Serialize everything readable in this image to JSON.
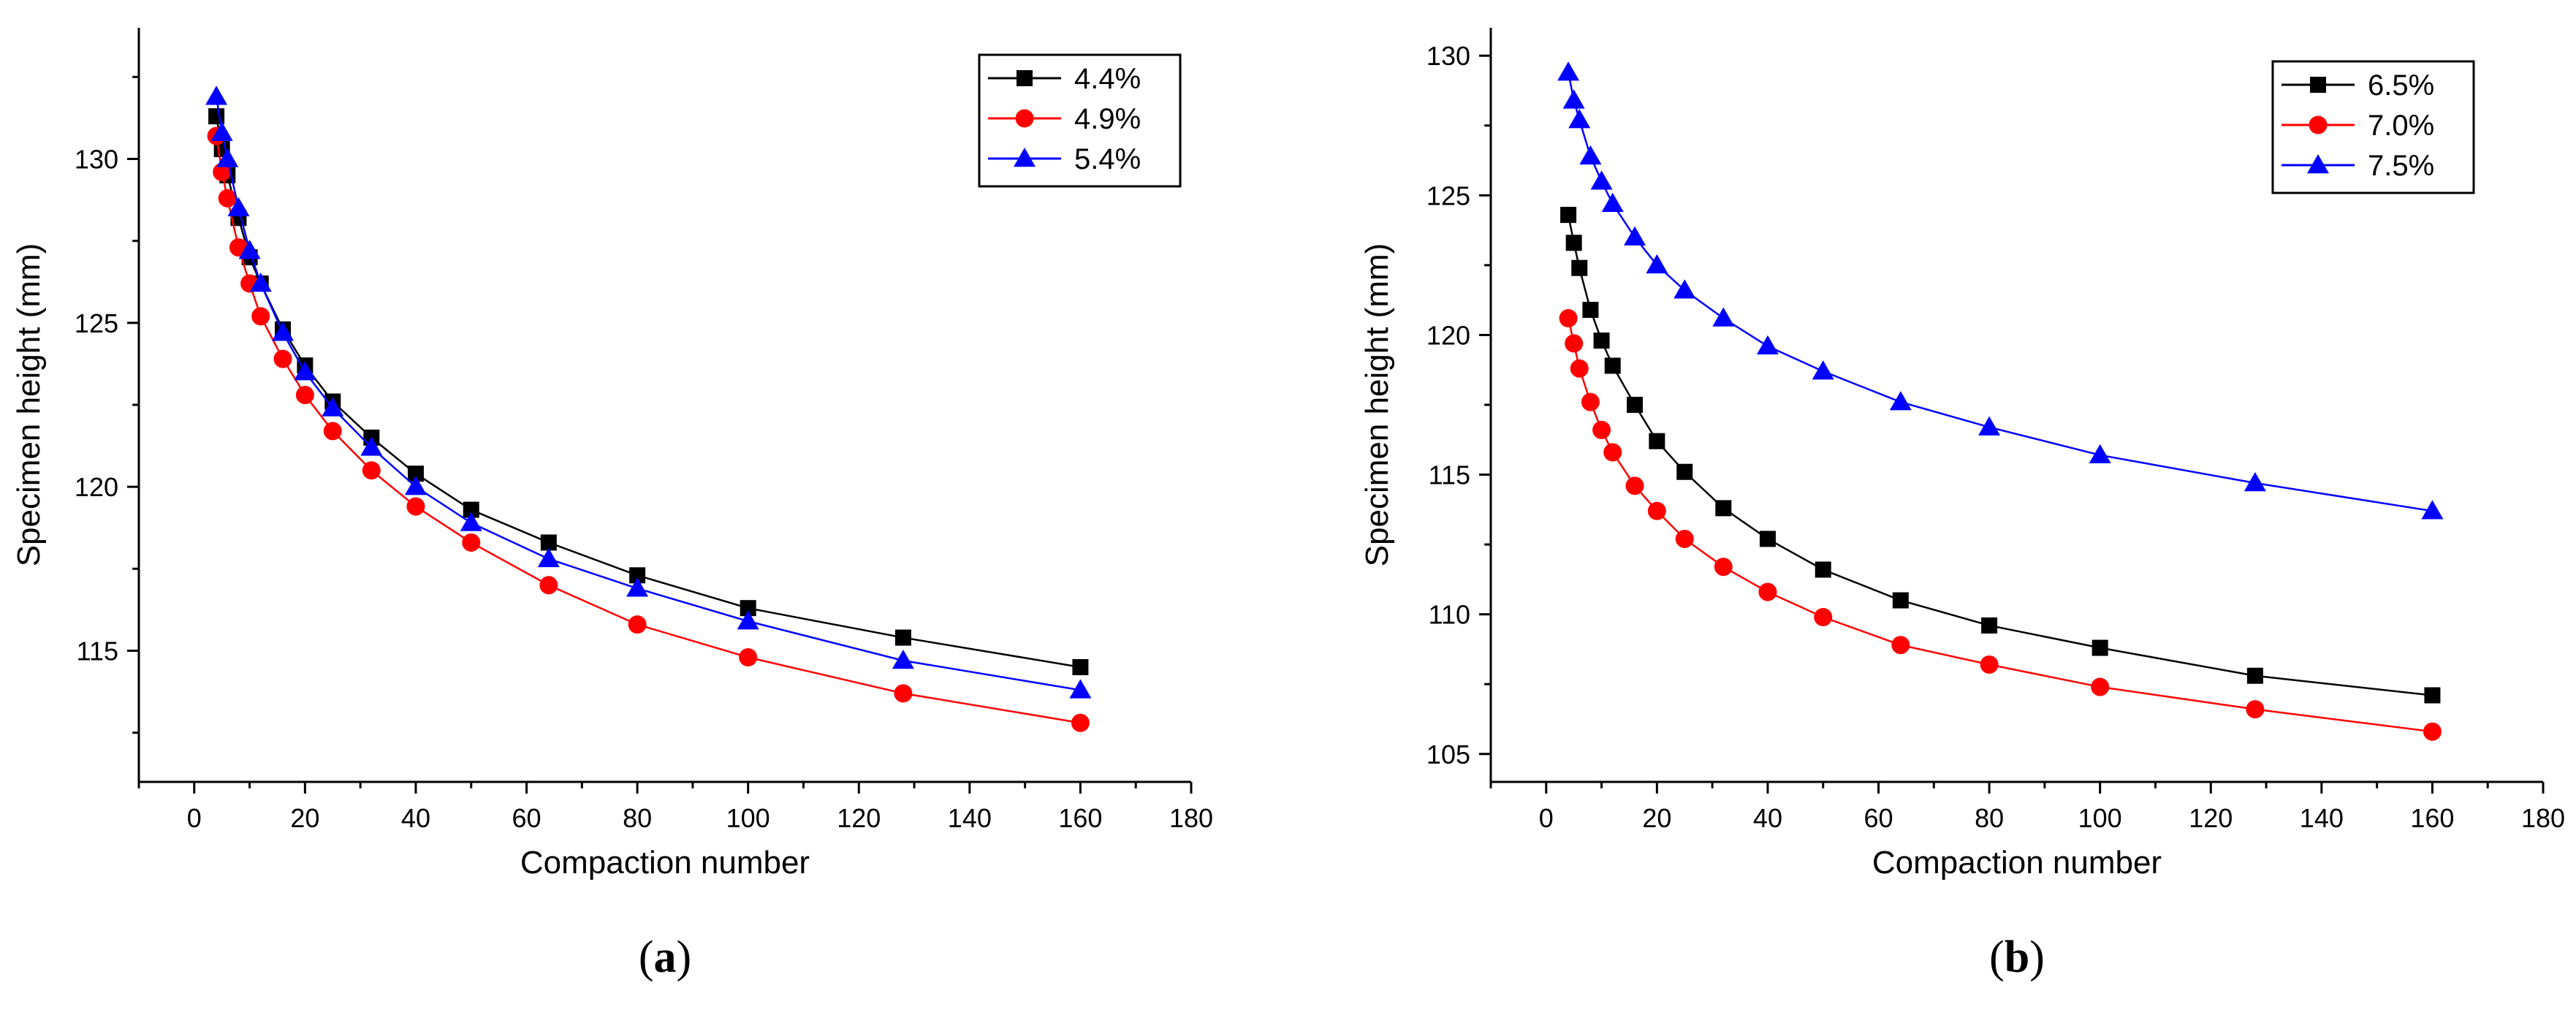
{
  "chart_data": [
    {
      "type": "line",
      "panel": "(a)",
      "panel_letter": "a",
      "xlabel": "Compaction number",
      "ylabel": "Specimen height (mm)",
      "xlim": [
        -10,
        180
      ],
      "ylim": [
        111,
        134
      ],
      "xticks": [
        0,
        20,
        40,
        60,
        80,
        100,
        120,
        140,
        160,
        180
      ],
      "yticks": [
        115,
        120,
        125,
        130
      ],
      "legend_position": "top-right",
      "series": [
        {
          "name": "4.4%",
          "color": "#000000",
          "marker": "square",
          "x": [
            4,
            5,
            6,
            8,
            10,
            12,
            16,
            20,
            25,
            32,
            40,
            50,
            64,
            80,
            100,
            128,
            160
          ],
          "y": [
            131.3,
            130.3,
            129.5,
            128.2,
            127.0,
            126.2,
            124.8,
            123.7,
            122.6,
            121.5,
            120.4,
            119.3,
            118.3,
            117.3,
            116.3,
            115.4,
            114.5
          ]
        },
        {
          "name": "4.9%",
          "color": "#ff0000",
          "marker": "circle",
          "x": [
            4,
            5,
            6,
            8,
            10,
            12,
            16,
            20,
            25,
            32,
            40,
            50,
            64,
            80,
            100,
            128,
            160
          ],
          "y": [
            130.7,
            129.6,
            128.8,
            127.3,
            126.2,
            125.2,
            123.9,
            122.8,
            121.7,
            120.5,
            119.4,
            118.3,
            117.0,
            115.8,
            114.8,
            113.7,
            112.8
          ]
        },
        {
          "name": "5.4%",
          "color": "#0000ff",
          "marker": "triangle",
          "x": [
            4,
            5,
            6,
            8,
            10,
            12,
            16,
            20,
            25,
            32,
            40,
            50,
            64,
            80,
            100,
            128,
            160
          ],
          "y": [
            131.9,
            130.8,
            130.0,
            128.5,
            127.2,
            126.2,
            124.7,
            123.5,
            122.4,
            121.2,
            120.0,
            118.9,
            117.8,
            116.9,
            115.9,
            114.7,
            113.8
          ]
        }
      ]
    },
    {
      "type": "line",
      "panel": "(b)",
      "panel_letter": "b",
      "xlabel": "Compaction number",
      "ylabel": "Specimen height (mm)",
      "xlim": [
        -10,
        180
      ],
      "ylim": [
        104,
        131
      ],
      "xticks": [
        0,
        20,
        40,
        60,
        80,
        100,
        120,
        140,
        160,
        180
      ],
      "yticks": [
        105,
        110,
        115,
        120,
        125,
        130
      ],
      "legend_position": "top-right",
      "series": [
        {
          "name": "6.5%",
          "color": "#000000",
          "marker": "square",
          "x": [
            4,
            5,
            6,
            8,
            10,
            12,
            16,
            20,
            25,
            32,
            40,
            50,
            64,
            80,
            100,
            128,
            160
          ],
          "y": [
            124.3,
            123.3,
            122.4,
            120.9,
            119.8,
            118.9,
            117.5,
            116.2,
            115.1,
            113.8,
            112.7,
            111.6,
            110.5,
            109.6,
            108.8,
            107.8,
            107.1
          ]
        },
        {
          "name": "7.0%",
          "color": "#ff0000",
          "marker": "circle",
          "x": [
            4,
            5,
            6,
            8,
            10,
            12,
            16,
            20,
            25,
            32,
            40,
            50,
            64,
            80,
            100,
            128,
            160
          ],
          "y": [
            120.6,
            119.7,
            118.8,
            117.6,
            116.6,
            115.8,
            114.6,
            113.7,
            112.7,
            111.7,
            110.8,
            109.9,
            108.9,
            108.2,
            107.4,
            106.6,
            105.8
          ]
        },
        {
          "name": "7.5%",
          "color": "#0000ff",
          "marker": "triangle",
          "x": [
            4,
            5,
            6,
            8,
            10,
            12,
            16,
            20,
            25,
            32,
            40,
            50,
            64,
            80,
            100,
            128,
            160
          ],
          "y": [
            129.4,
            128.4,
            127.7,
            126.4,
            125.5,
            124.7,
            123.5,
            122.5,
            121.6,
            120.6,
            119.6,
            118.7,
            117.6,
            116.7,
            115.7,
            114.7,
            113.7
          ]
        }
      ]
    }
  ]
}
